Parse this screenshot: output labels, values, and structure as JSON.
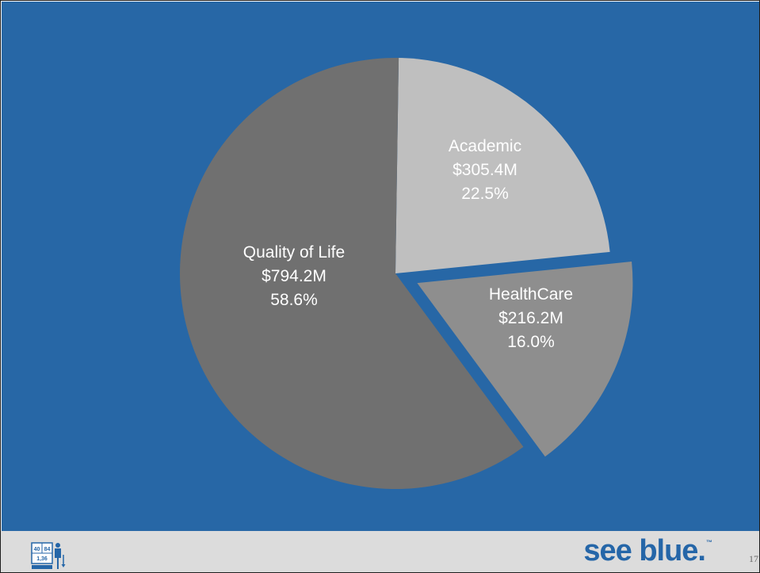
{
  "colors": {
    "background": "#2767a6",
    "footer": "#dcdcdc",
    "brand": "#2566a8"
  },
  "chart_data": {
    "type": "pie",
    "title": "",
    "slices": [
      {
        "name": "Academic",
        "amount": "$305.4M",
        "percent_label": "22.5%",
        "value": 22.5,
        "color": "#bfbfbf",
        "exploded": false
      },
      {
        "name": "HealthCare",
        "amount": "$216.2M",
        "percent_label": "16.0%",
        "value": 16.0,
        "color": "#8e8e8e",
        "exploded": true
      },
      {
        "name": "Quality of Life",
        "amount": "$794.2M",
        "percent_label": "58.6%",
        "value": 58.6,
        "color": "#707070",
        "exploded": false
      }
    ]
  },
  "footer": {
    "logo_icon": "40-84-1-36-logo-icon",
    "brand_text": "see blue.",
    "trademark": "™",
    "page_number": "17"
  }
}
